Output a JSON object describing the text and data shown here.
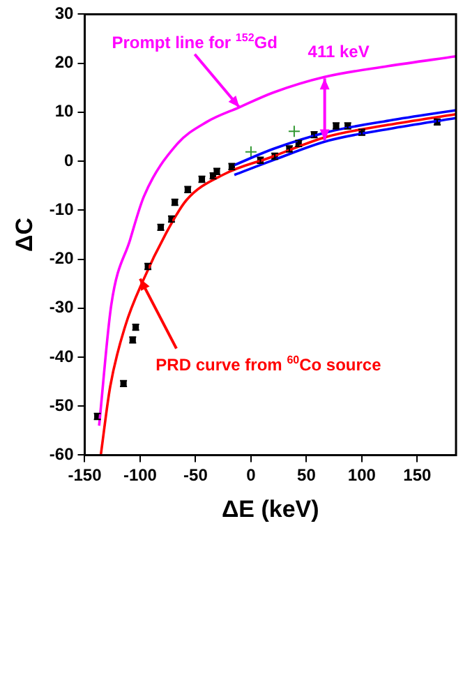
{
  "chart_data": {
    "type": "line",
    "xlabel": "ΔE (keV)",
    "ylabel": "ΔC",
    "xlim": [
      -150,
      185
    ],
    "ylim": [
      -60,
      30
    ],
    "xticks": [
      -150,
      -100,
      -50,
      0,
      50,
      100,
      150
    ],
    "yticks": [
      -60,
      -50,
      -40,
      -30,
      -20,
      -10,
      0,
      10,
      20,
      30
    ],
    "grid": false,
    "legend": false,
    "series": [
      {
        "color": "#ff00ff",
        "marker": "none",
        "x": [
          -137,
          -126,
          -109,
          -96.6,
          -67,
          -40,
          -10.5,
          20,
          66.5,
          123.6,
          185
        ],
        "values": [
          -54,
          -29.3,
          -16,
          -7.2,
          3.4,
          8,
          11,
          14,
          17.2,
          19.4,
          21.4
        ]
      },
      {
        "color": "#ff0000",
        "marker": "none",
        "x": [
          -135.5,
          -127,
          -113.5,
          -96.6,
          -77.5,
          -58.4,
          -24.5,
          17.8,
          68.6,
          123.6,
          185
        ],
        "values": [
          -60,
          -46,
          -33.7,
          -24,
          -15.1,
          -8,
          -2.7,
          0.8,
          5,
          7.4,
          9.6
        ]
      },
      {
        "color": "#0000ff",
        "marker": "none",
        "x": [
          -15,
          20,
          70,
          125,
          185
        ],
        "values": [
          -0.8,
          2.5,
          6,
          8.3,
          10.4
        ]
      },
      {
        "color": "#0000ff",
        "marker": "none",
        "x": [
          -15,
          20,
          70,
          125,
          185
        ],
        "values": [
          -2.8,
          0.2,
          4.2,
          6.6,
          8.8
        ]
      },
      {
        "type": "scatter",
        "color": "#000000",
        "marker": "square",
        "x": [
          -138.6,
          -115,
          -106.7,
          -104,
          -93,
          -81.4,
          -71.7,
          -68.7,
          -57,
          -44.3,
          -34.2,
          -30.8,
          -17.3,
          8.5,
          21.5,
          34.6,
          43,
          57,
          76.8,
          87.3,
          100,
          168
        ],
        "values": [
          -52.1,
          -45.4,
          -36.5,
          -33.9,
          -21.5,
          -13.5,
          -11.8,
          -8.4,
          -5.8,
          -3.7,
          -3,
          -2.1,
          -1.1,
          0.2,
          1,
          2.5,
          3.6,
          5.4,
          7.2,
          7.2,
          5.9,
          8
        ],
        "errors": [
          0.6,
          0.6,
          0.6,
          0.6,
          0.6,
          0.6,
          0.6,
          0.6,
          0.6,
          0.6,
          0.6,
          0.6,
          0.6,
          0.6,
          0.6,
          0.6,
          0.6,
          0.6,
          0.6,
          0.6,
          0.6,
          0.6
        ]
      },
      {
        "type": "scatter",
        "color": "#339933",
        "marker": "cross",
        "x": [
          0,
          39
        ],
        "values": [
          1.9,
          6.1
        ]
      }
    ],
    "annotations": [
      {
        "text": "Prompt line for $^{152}$Gd",
        "x": -10.5,
        "y": 11
      },
      {
        "text": "411 keV",
        "x": 66.5,
        "y": 17.2
      },
      {
        "text": "PRD curve from $^{60}$Co source",
        "x": -100,
        "y": -24
      }
    ]
  }
}
